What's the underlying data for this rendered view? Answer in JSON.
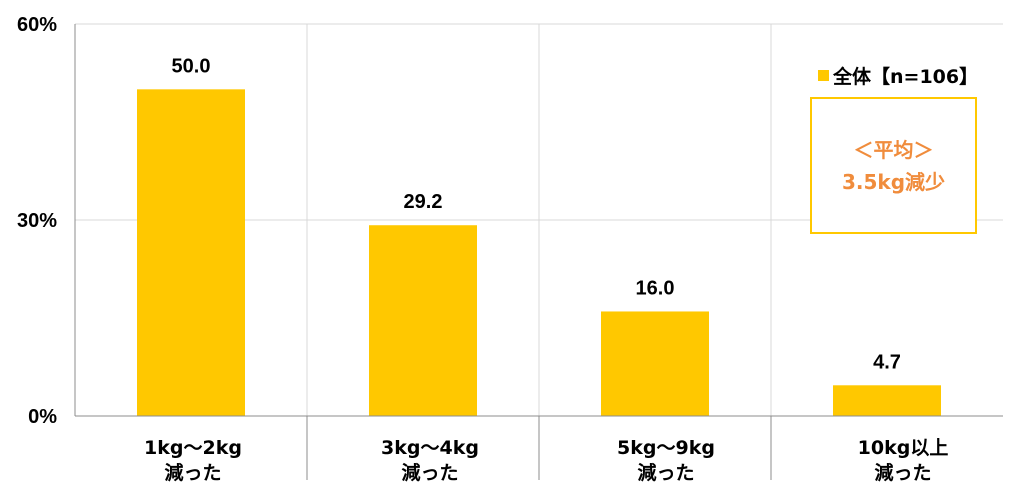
{
  "chart_data": {
    "type": "bar",
    "categories": [
      {
        "line1": "1kg～2kg",
        "line2": "減った"
      },
      {
        "line1": "3kg～4kg",
        "line2": "減った"
      },
      {
        "line1": "5kg～9kg",
        "line2": "減った"
      },
      {
        "line1": "10kg以上",
        "line2": "減った"
      }
    ],
    "series": [
      {
        "name": "全体【n=106】",
        "values": [
          50.0,
          29.2,
          16.0,
          4.7
        ],
        "data_labels": [
          "50.0",
          "29.2",
          "16.0",
          "4.7"
        ]
      }
    ],
    "y_ticks": [
      "0%",
      "30%",
      "60%"
    ],
    "y_tick_values": [
      0,
      30,
      60
    ],
    "ylim": [
      0,
      60
    ],
    "legend_position": "top-right",
    "annotation": {
      "line1": "＜平均＞",
      "line2": "3.5kg減少"
    },
    "colors": {
      "bar": "#FFC800",
      "annotation_text": "#F08C3C",
      "annotation_border": "#FFC800",
      "axis": "#8C8C8C",
      "grid": "#D9D9D9"
    }
  }
}
